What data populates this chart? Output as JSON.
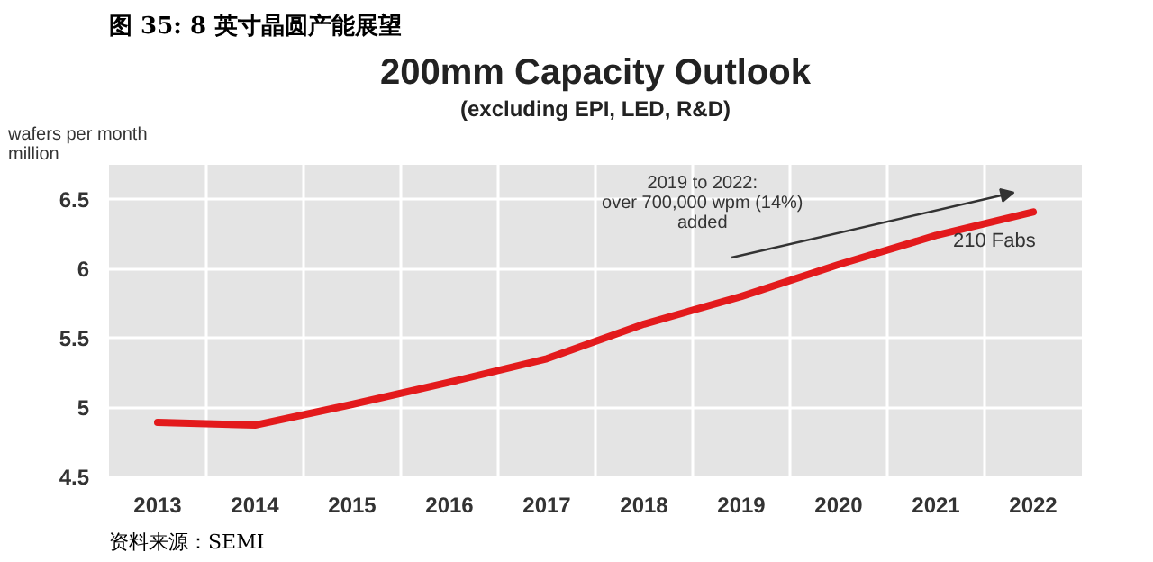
{
  "chart_data": {
    "type": "line",
    "title": "图 35: 8 英寸晶圆产能展望",
    "subtitle": "200mm Capacity Outlook",
    "ylabel": "wafers per month\nmillion",
    "categories": [
      "2013",
      "2014",
      "2015",
      "2016",
      "2017",
      "2018",
      "2019",
      "2020",
      "2021",
      "2022"
    ],
    "series": [
      {
        "color": "#e31a1c",
        "values": [
          4.89,
          4.87,
          5.02,
          5.18,
          5.35,
          5.6,
          5.8,
          6.03,
          6.24,
          6.41
        ]
      }
    ],
    "ylim": [
      4.5,
      6.75
    ],
    "yticks": [
      4.5,
      5,
      5.5,
      6,
      6.5
    ],
    "grid": true,
    "marker": "none",
    "line_style": "solid",
    "annotations": [
      "(excluding EPI, LED, R&D)",
      "2019 to 2022:\nover 700,000 wpm (14%)\nadded",
      "210 Fabs",
      "资料来源：SEMI"
    ]
  }
}
